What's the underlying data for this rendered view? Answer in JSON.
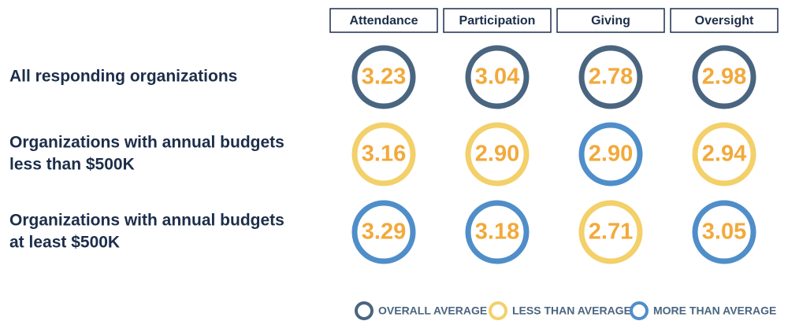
{
  "columns": [
    "Attendance",
    "Participation",
    "Giving",
    "Oversight"
  ],
  "rows": [
    {
      "label": [
        "All responding organizations"
      ],
      "cells": [
        {
          "value": "3.23",
          "color": "#4a6580"
        },
        {
          "value": "3.04",
          "color": "#4a6580"
        },
        {
          "value": "2.78",
          "color": "#4a6580"
        },
        {
          "value": "2.98",
          "color": "#4a6580"
        }
      ]
    },
    {
      "label": [
        "Organizations with annual budgets",
        "less than $500K"
      ],
      "cells": [
        {
          "value": "3.16",
          "color": "#f3d06a"
        },
        {
          "value": "2.90",
          "color": "#f3d06a"
        },
        {
          "value": "2.90",
          "color": "#4f8ec9"
        },
        {
          "value": "2.94",
          "color": "#f3d06a"
        }
      ]
    },
    {
      "label": [
        "Organizations with annual budgets",
        "at least $500K"
      ],
      "cells": [
        {
          "value": "3.29",
          "color": "#4f8ec9"
        },
        {
          "value": "3.18",
          "color": "#4f8ec9"
        },
        {
          "value": "2.71",
          "color": "#f3d06a"
        },
        {
          "value": "3.05",
          "color": "#4f8ec9"
        }
      ]
    }
  ],
  "legend": [
    {
      "label": "OVERALL AVERAGE",
      "color": "#4a6580"
    },
    {
      "label": "LESS THAN AVERAGE",
      "color": "#f3d06a"
    },
    {
      "label": "MORE THAN AVERAGE",
      "color": "#4f8ec9"
    }
  ]
}
